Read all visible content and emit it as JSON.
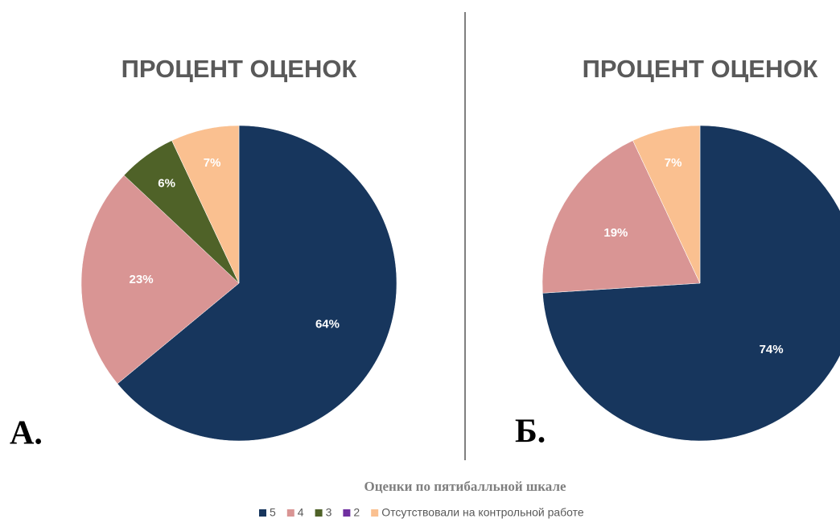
{
  "legend": {
    "title": "Оценки по пятибалльной шкале",
    "categories": [
      "5",
      "4",
      "3",
      "2",
      "Отсутствовали на контрольной работе"
    ],
    "colors": [
      "#17365d",
      "#d99594",
      "#4f6228",
      "#7030a0",
      "#fac090"
    ]
  },
  "chart_data": [
    {
      "type": "pie",
      "title": "ПРОЦЕНТ ОЦЕНОК",
      "label": "А.",
      "values": [
        64,
        23,
        6,
        0,
        7
      ],
      "value_labels": [
        "64%",
        "23%",
        "6%",
        null,
        "7%"
      ]
    },
    {
      "type": "pie",
      "title": "ПРОЦЕНТ ОЦЕНОК",
      "label": "Б.",
      "values": [
        74,
        19,
        0,
        0,
        7
      ],
      "value_labels": [
        "74%",
        "19%",
        null,
        null,
        "7%"
      ]
    }
  ]
}
